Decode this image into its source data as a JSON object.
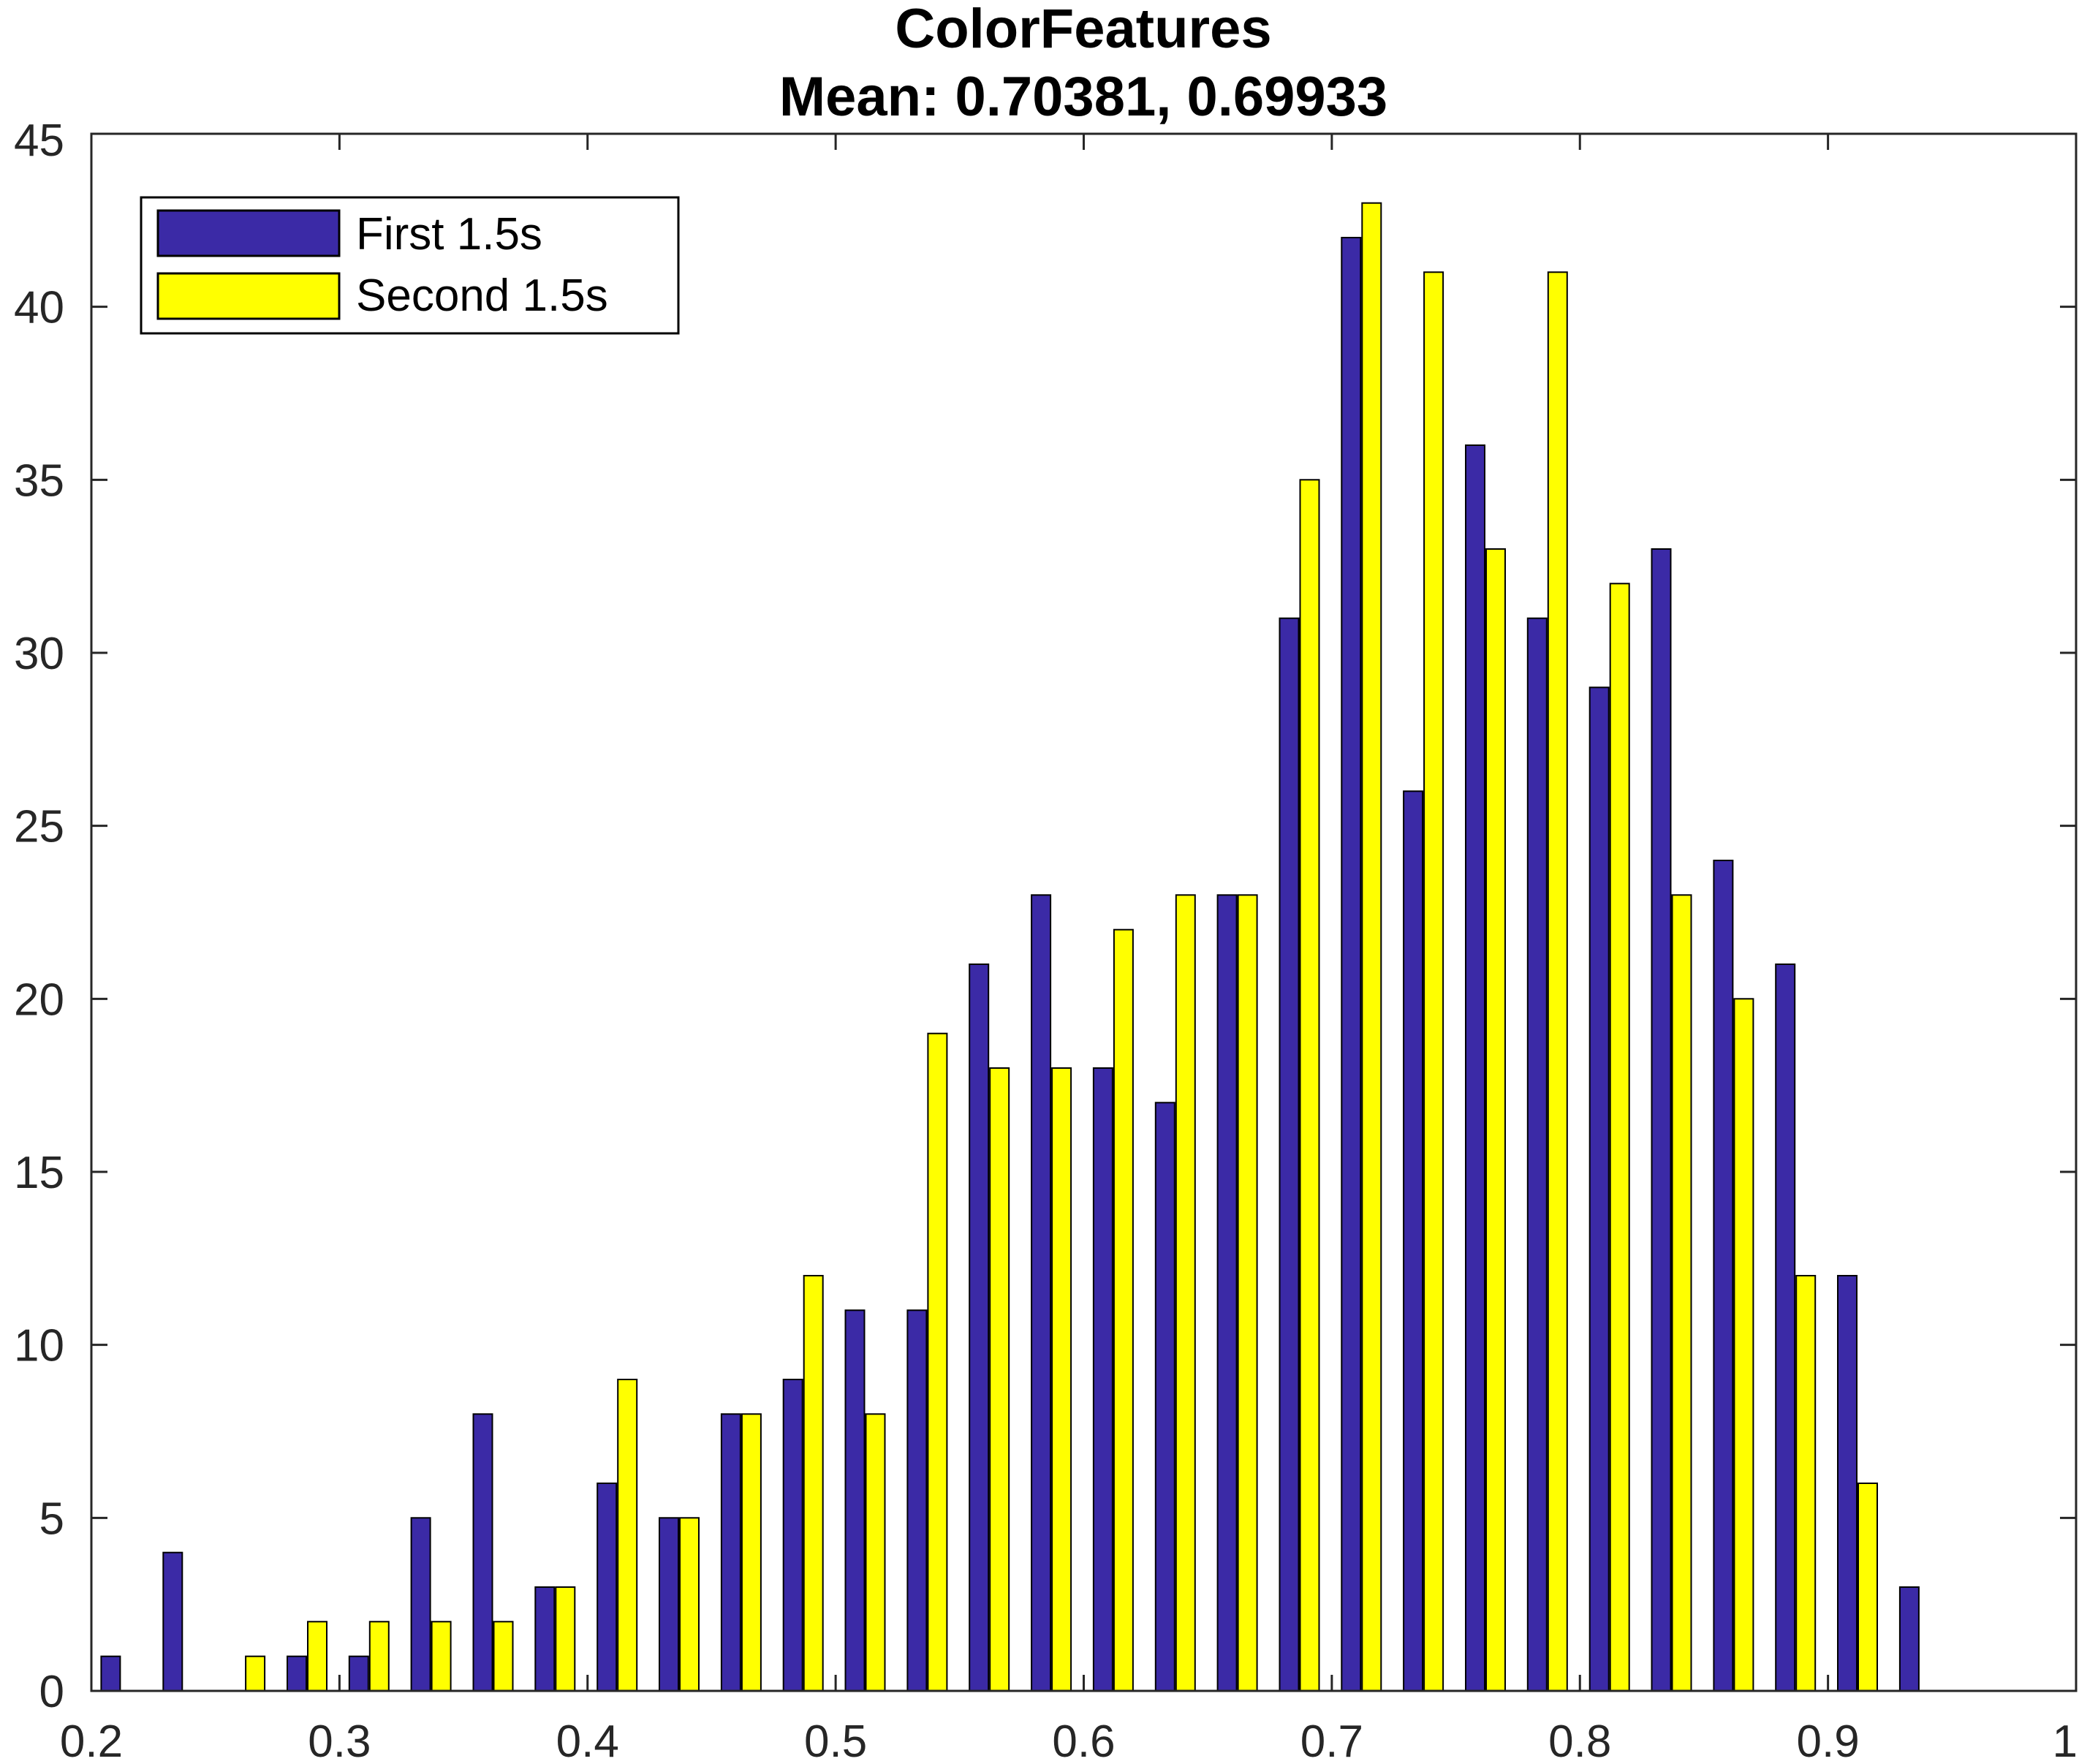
{
  "chart_data": {
    "type": "bar",
    "title": "ColorFeatures",
    "subtitle": "Mean: 0.70381, 0.69933",
    "xlabel": "",
    "ylabel": "",
    "xlim": [
      0.2,
      1
    ],
    "ylim": [
      0,
      45
    ],
    "xticks": [
      "0.2",
      "0.3",
      "0.4",
      "0.5",
      "0.6",
      "0.7",
      "0.8",
      "0.9",
      "1"
    ],
    "yticks": [
      "0",
      "5",
      "10",
      "15",
      "20",
      "25",
      "30",
      "35",
      "40",
      "45"
    ],
    "grid": false,
    "legend_position": "top-left",
    "bin_centers": [
      0.2125,
      0.2375,
      0.2625,
      0.2875,
      0.3125,
      0.3375,
      0.3625,
      0.3875,
      0.4125,
      0.4375,
      0.4625,
      0.4875,
      0.5125,
      0.5375,
      0.5625,
      0.5875,
      0.6125,
      0.6375,
      0.6625,
      0.6875,
      0.7125,
      0.7375,
      0.7625,
      0.7875,
      0.8125,
      0.8375,
      0.8625,
      0.8875,
      0.9125,
      0.9375
    ],
    "series": [
      {
        "name": "First 1.5s",
        "color": "#3b2aa6",
        "values": [
          1,
          4,
          0,
          1,
          1,
          5,
          8,
          3,
          6,
          5,
          8,
          9,
          11,
          11,
          21,
          23,
          18,
          17,
          23,
          31,
          42,
          26,
          36,
          31,
          29,
          33,
          24,
          21,
          12,
          3
        ]
      },
      {
        "name": "Second 1.5s",
        "color": "#ffff00",
        "values": [
          0,
          0,
          1,
          2,
          2,
          2,
          2,
          3,
          9,
          5,
          8,
          12,
          8,
          19,
          18,
          18,
          22,
          23,
          23,
          35,
          43,
          41,
          33,
          41,
          32,
          23,
          20,
          12,
          6,
          0
        ]
      }
    ]
  }
}
